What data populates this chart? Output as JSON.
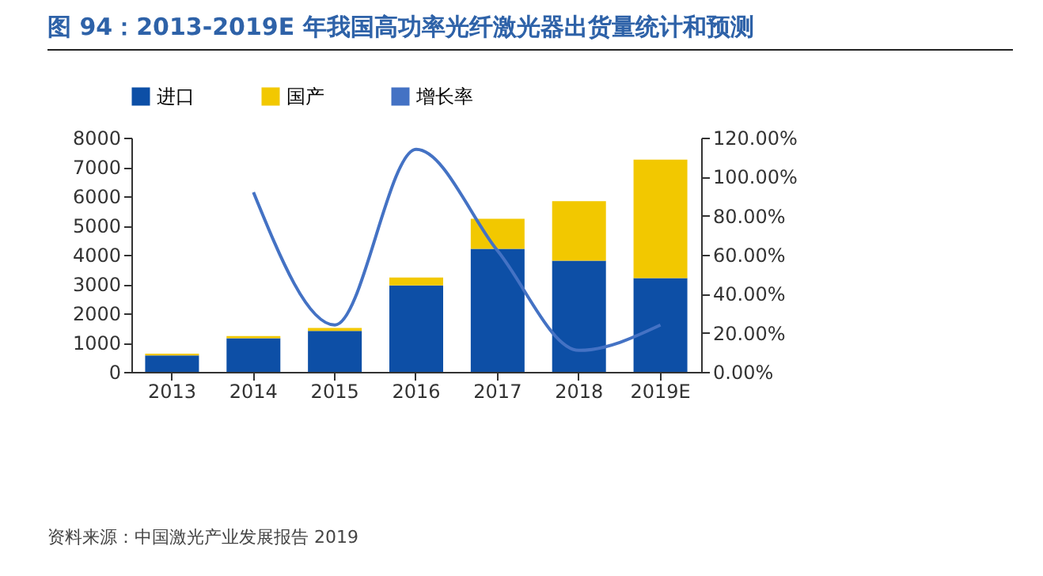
{
  "chart_data": {
    "type": "bar",
    "title": "图 94：2013-2019E 年我国高功率光纤激光器出货量统计和预测",
    "annotations": [
      "资料来源：中国激光产业发展报告 2019"
    ],
    "categories": [
      "2013",
      "2014",
      "2015",
      "2016",
      "2017",
      "2018",
      "2019E"
    ],
    "stacked": true,
    "legend": "top",
    "grid": false,
    "ylim": [
      0,
      8000
    ],
    "yticks": [
      0,
      1000,
      2000,
      3000,
      4000,
      5000,
      6000,
      7000,
      8000
    ],
    "y2lim": [
      0,
      120
    ],
    "y2ticks": [
      {
        "value": 0,
        "label": "0.00%"
      },
      {
        "value": 20,
        "label": "20.00%"
      },
      {
        "value": 40,
        "label": "40.00%"
      },
      {
        "value": 60,
        "label": "60.00%"
      },
      {
        "value": 80,
        "label": "80.00%"
      },
      {
        "value": 100,
        "label": "100.00%"
      },
      {
        "value": 120,
        "label": "120.00%"
      }
    ],
    "series": [
      {
        "name": "进口",
        "color": "#0d4fa6",
        "values": [
          560,
          1150,
          1400,
          2950,
          4200,
          3800,
          3200
        ]
      },
      {
        "name": "国产",
        "color": "#f2c800",
        "values": [
          60,
          70,
          100,
          270,
          1030,
          2030,
          4050
        ]
      },
      {
        "name": "增长率",
        "type": "line",
        "axis": "y2",
        "color": "#4472c4",
        "values": [
          null,
          92,
          24,
          114,
          62,
          11,
          24
        ]
      }
    ]
  }
}
